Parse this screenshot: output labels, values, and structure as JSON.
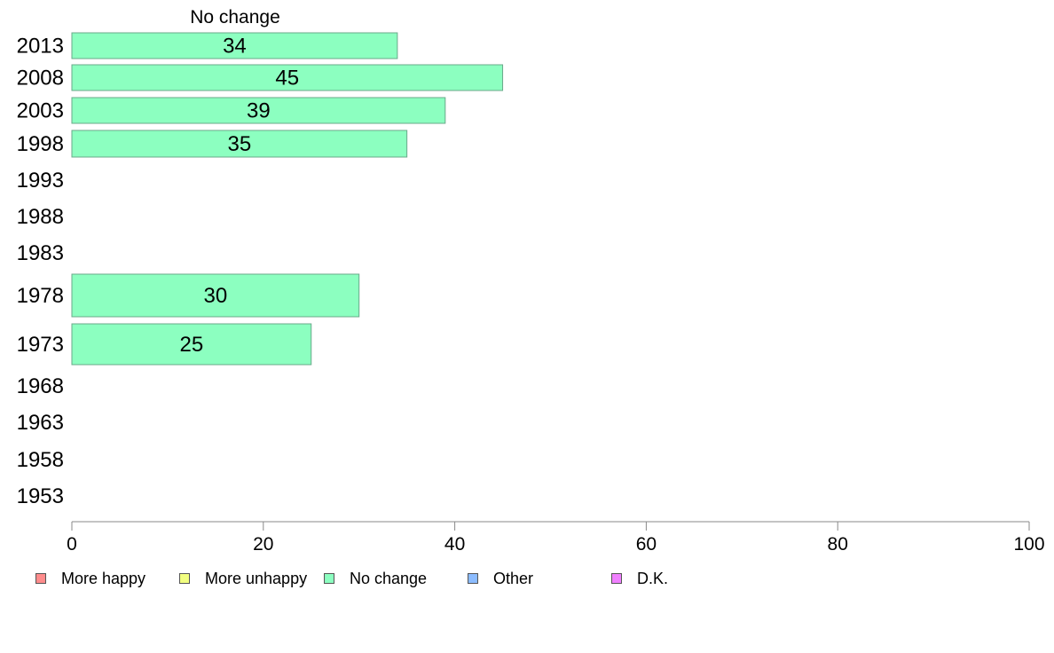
{
  "chart_data": {
    "type": "bar",
    "orientation": "horizontal",
    "title": "No change",
    "categories": [
      "2013",
      "2008",
      "2003",
      "1998",
      "1993",
      "1988",
      "1983",
      "1978",
      "1973",
      "1968",
      "1963",
      "1958",
      "1953"
    ],
    "series": [
      {
        "name": "More happy",
        "color": "#ff8c8c",
        "values": [
          null,
          null,
          null,
          null,
          null,
          null,
          null,
          null,
          null,
          null,
          null,
          null,
          null
        ]
      },
      {
        "name": "More unhappy",
        "color": "#f2ff80",
        "values": [
          null,
          null,
          null,
          null,
          null,
          null,
          null,
          null,
          null,
          null,
          null,
          null,
          null
        ]
      },
      {
        "name": "No change",
        "color": "#8cffc0",
        "values": [
          34,
          45,
          39,
          35,
          null,
          null,
          null,
          30,
          25,
          null,
          null,
          null,
          null
        ]
      },
      {
        "name": "Other",
        "color": "#8cbcff",
        "values": [
          null,
          null,
          null,
          null,
          null,
          null,
          null,
          null,
          null,
          null,
          null,
          null,
          null
        ]
      },
      {
        "name": "D.K.",
        "color": "#f080ff",
        "values": [
          null,
          null,
          null,
          null,
          null,
          null,
          null,
          null,
          null,
          null,
          null,
          null,
          null
        ]
      }
    ],
    "xlim": [
      0,
      100
    ],
    "xticks": [
      0,
      20,
      40,
      60,
      80,
      100
    ],
    "grid": false,
    "legend_position": "bottom"
  },
  "legend": [
    {
      "label": "More happy",
      "color": "#ff8c8c"
    },
    {
      "label": "More unhappy",
      "color": "#f2ff80"
    },
    {
      "label": "No change",
      "color": "#8cffc0"
    },
    {
      "label": "Other",
      "color": "#8cbcff"
    },
    {
      "label": "D.K.",
      "color": "#f080ff"
    }
  ]
}
